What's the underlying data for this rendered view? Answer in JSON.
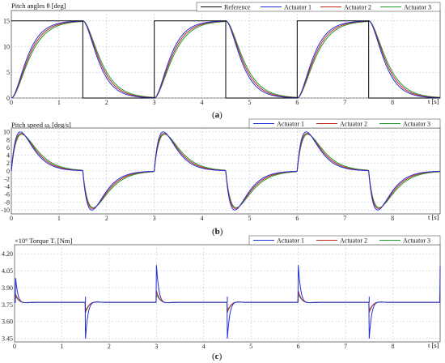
{
  "chart_data": [
    {
      "type": "line",
      "ylabel": "Pitch angles θ [deg]",
      "xlabel": "t [s]",
      "caption_letter": "a",
      "xlim": [
        0,
        9
      ],
      "ylim": [
        0,
        17
      ],
      "xticks": [
        0,
        1,
        2,
        3,
        4,
        5,
        6,
        7,
        8
      ],
      "yticks": [
        0,
        5,
        10,
        15
      ],
      "grid": true,
      "legend_position": "top-right",
      "colors": {
        "reference": "#000000",
        "actuator1": "#1f2fd8",
        "actuator2": "#c0241c",
        "actuator3": "#1f9a2c"
      },
      "series": [
        {
          "name": "Reference",
          "x": [
            0,
            1.5,
            1.5,
            3,
            3,
            4.5,
            4.5,
            6,
            6,
            7.5,
            7.5,
            9
          ],
          "y": [
            15,
            15,
            0,
            0,
            15,
            15,
            0,
            0,
            15,
            15,
            0,
            0
          ]
        },
        {
          "name": "Actuator 1"
        },
        {
          "name": "Actuator 2"
        },
        {
          "name": "Actuator 3"
        }
      ]
    },
    {
      "type": "line",
      "ylabel": "Pitch speed ωᵢ [deg/s]",
      "xlabel": "t [s]",
      "caption_letter": "b",
      "xlim": [
        0,
        9
      ],
      "ylim": [
        -11,
        11
      ],
      "xticks": [
        0,
        1,
        2,
        3,
        4,
        5,
        6,
        7,
        8
      ],
      "yticks": [
        -10,
        -8,
        -6,
        -4,
        -2,
        0,
        2,
        4,
        6,
        8,
        10
      ],
      "grid": true,
      "legend_position": "top-right",
      "colors": {
        "actuator1": "#1f2fd8",
        "actuator2": "#c0241c",
        "actuator3": "#1f9a2c"
      },
      "series": [
        {
          "name": "Actuator 1",
          "peak": 10
        },
        {
          "name": "Actuator 2",
          "peak": 9.6
        },
        {
          "name": "Actuator 3",
          "peak": 9.4
        }
      ]
    },
    {
      "type": "line",
      "ylabel": "Torque Tᵢ [Nm]",
      "scale_label": "×10⁶",
      "xlabel": "t [s]",
      "caption_letter": "c",
      "xlim": [
        0,
        9
      ],
      "ylim": [
        3.42,
        4.28
      ],
      "xticks": [
        0,
        1,
        2,
        3,
        4,
        5,
        6,
        7,
        8
      ],
      "yticks": [
        3.45,
        3.6,
        3.75,
        3.9,
        4.05,
        4.2
      ],
      "ytick_labels": [
        "3.45",
        "3.60",
        "3.75",
        "3.90",
        "4.05",
        "4.20"
      ],
      "grid": true,
      "legend_position": "top-right",
      "baseline": 3.77,
      "colors": {
        "actuator1": "#1f2fd8",
        "actuator2": "#c0241c",
        "actuator3": "#1f9a2c"
      },
      "series": [
        {
          "name": "Actuator 1",
          "up_peak": 4.1,
          "down_peak": 3.45
        },
        {
          "name": "Actuator 2",
          "up_peak": 3.87,
          "down_peak": 3.68
        },
        {
          "name": "Actuator 3",
          "up_peak": 3.84,
          "down_peak": 3.7
        }
      ]
    }
  ]
}
